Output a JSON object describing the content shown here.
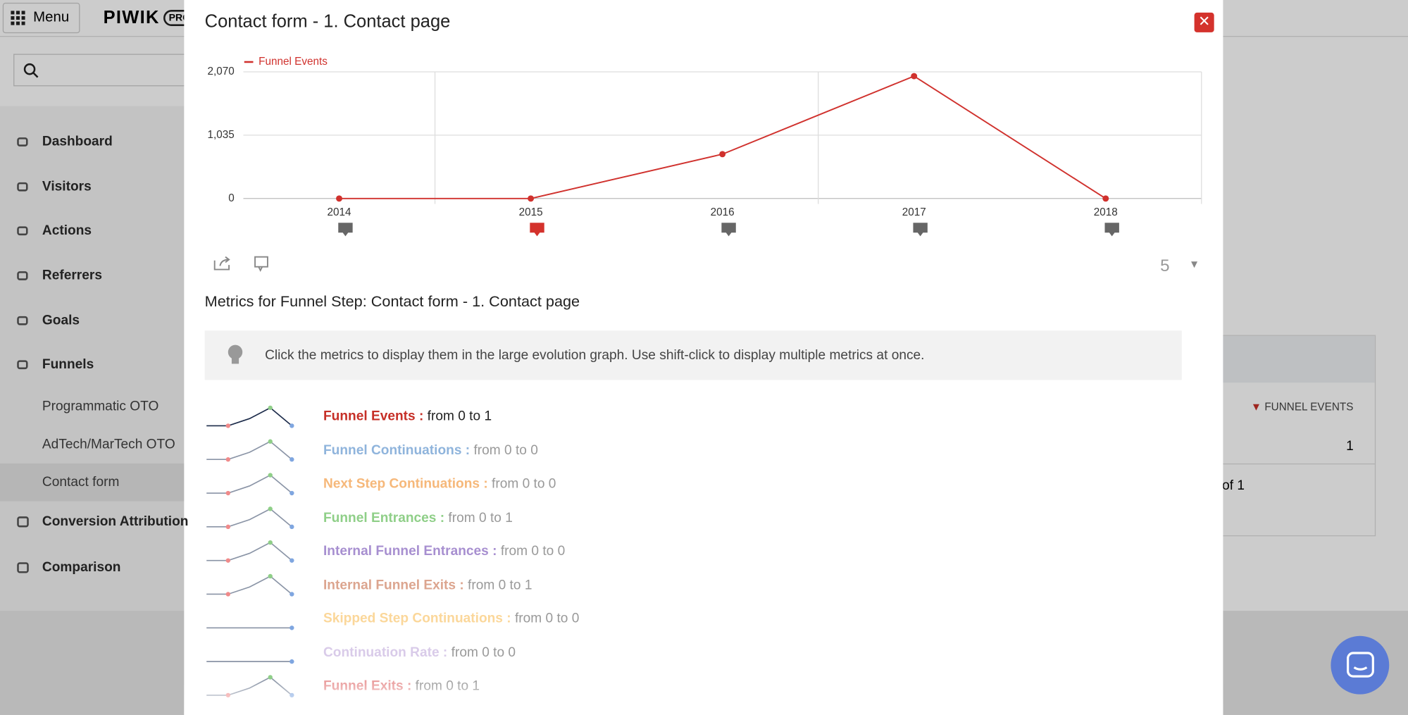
{
  "chart_data": {
    "type": "line",
    "title": "Contact form - 1. Contact page",
    "categories": [
      "2014",
      "2015",
      "2016",
      "2017",
      "2018"
    ],
    "series": [
      {
        "name": "Funnel Events",
        "color": "#d0312d",
        "values": [
          0,
          0,
          725,
          2000,
          0
        ]
      }
    ],
    "ylim": [
      0,
      2070
    ],
    "yticks": [
      0,
      {
        "value": 1035,
        "label": "1,035"
      },
      {
        "value": 2070,
        "label": "2,070"
      }
    ],
    "grid": true,
    "legend": "top-left"
  },
  "ui": {
    "menu": "Menu",
    "logo": "PIWIK",
    "logo_badge": "PRO",
    "nav": [
      "Dashboard",
      "Visitors",
      "Actions",
      "Referrers",
      "Goals",
      "Funnels"
    ],
    "subnav": [
      "Programmatic OTO",
      "AdTech/MarTech OTO",
      "Contact form"
    ],
    "nav_more": [
      "Conversion Attribution",
      "Comparison"
    ],
    "table_header": "FUNNEL EVENTS",
    "table_value": "1",
    "pager": "of 1",
    "limit": "5",
    "metrics_title": "Metrics for Funnel Step: Contact form - 1. Contact page",
    "tip": "Click the metrics to display them in the large evolution graph. Use shift-click to display multiple metrics at once.",
    "metrics": [
      {
        "name": "Funnel Events :",
        "range": "from 0 to 1",
        "color": "#c62f27"
      },
      {
        "name": "Funnel Continuations :",
        "range": "from 0 to 0",
        "color": "#8fb4dc"
      },
      {
        "name": "Next Step Continuations :",
        "range": "from 0 to 0",
        "color": "#f6b87a"
      },
      {
        "name": "Funnel Entrances :",
        "range": "from 0 to 1",
        "color": "#8fcf88"
      },
      {
        "name": "Internal Funnel Entrances :",
        "range": "from 0 to 0",
        "color": "#a78fd0"
      },
      {
        "name": "Internal Funnel Exits :",
        "range": "from 0 to 1",
        "color": "#dca58f"
      },
      {
        "name": "Skipped Step Continuations :",
        "range": "from 0 to 0",
        "color": "#fbd79a"
      },
      {
        "name": "Continuation Rate :",
        "range": "from 0 to 0",
        "color": "#d9cbe9"
      },
      {
        "name": "Funnel Exits :",
        "range": "from 0 to 1",
        "color": "#e99a9a"
      }
    ]
  }
}
